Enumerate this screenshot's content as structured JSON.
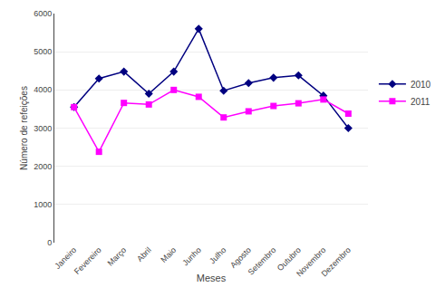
{
  "chart_data": {
    "type": "line",
    "categories": [
      "Janeiro",
      "Fevereiro",
      "Março",
      "Abril",
      "Maio",
      "Junho",
      "Julho",
      "Agosto",
      "Setembro",
      "Outubro",
      "Novembro",
      "Dezembro"
    ],
    "series": [
      {
        "name": "2010",
        "color": "#000080",
        "marker": "diamond",
        "values": [
          3550,
          4300,
          4480,
          3900,
          4480,
          5600,
          3980,
          4180,
          4320,
          4380,
          3850,
          3000
        ]
      },
      {
        "name": "2011",
        "color": "#FF00FF",
        "marker": "square",
        "values": [
          3550,
          2380,
          3660,
          3620,
          4000,
          3820,
          3280,
          3440,
          3580,
          3650,
          3750,
          3380
        ]
      }
    ],
    "xlabel": "Meses",
    "ylabel": "Número de refeições",
    "ylim": [
      0,
      6000
    ],
    "yticks": [
      0,
      1000,
      2000,
      3000,
      4000,
      5000,
      6000
    ],
    "grid": true,
    "legend": "right"
  }
}
